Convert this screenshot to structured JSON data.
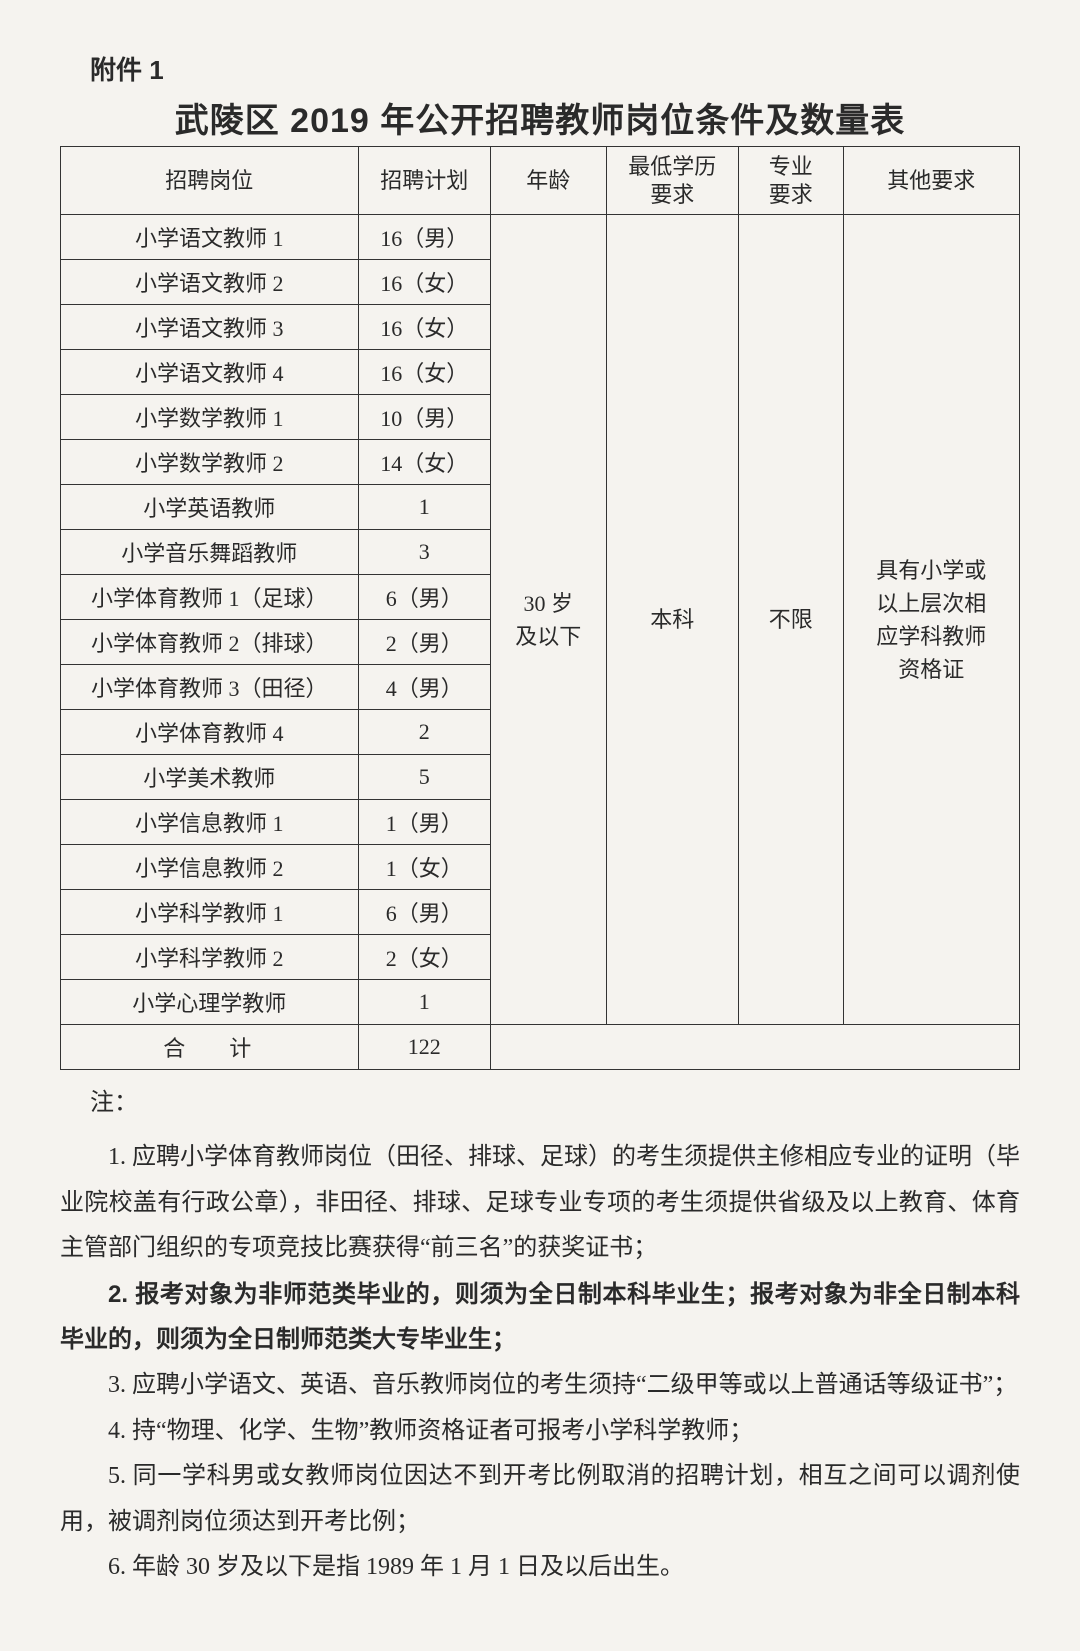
{
  "attachment_label": "附件 1",
  "title": "武陵区 2019 年公开招聘教师岗位条件及数量表",
  "headers": {
    "position": "招聘岗位",
    "plan": "招聘计划",
    "age": "年龄",
    "edu": "最低学历\n要求",
    "major": "专业\n要求",
    "other": "其他要求"
  },
  "rows": [
    {
      "position": "小学语文教师 1",
      "plan": "16（男）"
    },
    {
      "position": "小学语文教师 2",
      "plan": "16（女）"
    },
    {
      "position": "小学语文教师 3",
      "plan": "16（女）"
    },
    {
      "position": "小学语文教师 4",
      "plan": "16（女）"
    },
    {
      "position": "小学数学教师 1",
      "plan": "10（男）"
    },
    {
      "position": "小学数学教师 2",
      "plan": "14（女）"
    },
    {
      "position": "小学英语教师",
      "plan": "1"
    },
    {
      "position": "小学音乐舞蹈教师",
      "plan": "3"
    },
    {
      "position": "小学体育教师 1（足球）",
      "plan": "6（男）"
    },
    {
      "position": "小学体育教师 2（排球）",
      "plan": "2（男）"
    },
    {
      "position": "小学体育教师 3（田径）",
      "plan": "4（男）"
    },
    {
      "position": "小学体育教师 4",
      "plan": "2"
    },
    {
      "position": "小学美术教师",
      "plan": "5"
    },
    {
      "position": "小学信息教师 1",
      "plan": "1（男）"
    },
    {
      "position": "小学信息教师 2",
      "plan": "1（女）"
    },
    {
      "position": "小学科学教师 1",
      "plan": "6（男）"
    },
    {
      "position": "小学科学教师 2",
      "plan": "2（女）"
    },
    {
      "position": "小学心理学教师",
      "plan": "1"
    }
  ],
  "merged": {
    "age": "30 岁\n及以下",
    "edu": "本科",
    "major": "不限",
    "other": "具有小学或\n以上层次相\n应学科教师\n资格证"
  },
  "total": {
    "label": "合计",
    "value": "122"
  },
  "notes_label": "注：",
  "notes": [
    {
      "text": "1. 应聘小学体育教师岗位（田径、排球、足球）的考生须提供主修相应专业的证明（毕业院校盖有行政公章），非田径、排球、足球专业专项的考生须提供省级及以上教育、体育主管部门组织的专项竞技比赛获得“前三名”的获奖证书；",
      "bold": false
    },
    {
      "text": "2. 报考对象为非师范类毕业的，则须为全日制本科毕业生；报考对象为非全日制本科毕业的，则须为全日制师范类大专毕业生；",
      "bold": true
    },
    {
      "text": "3. 应聘小学语文、英语、音乐教师岗位的考生须持“二级甲等或以上普通话等级证书”；",
      "bold": false
    },
    {
      "text": "4. 持“物理、化学、生物”教师资格证者可报考小学科学教师；",
      "bold": false
    },
    {
      "text": "5. 同一学科男或女教师岗位因达不到开考比例取消的招聘计划，相互之间可以调剂使用，被调剂岗位须达到开考比例；",
      "bold": false
    },
    {
      "text": "6. 年龄 30 岁及以下是指 1989 年 1 月 1 日及以后出生。",
      "bold": false
    }
  ]
}
